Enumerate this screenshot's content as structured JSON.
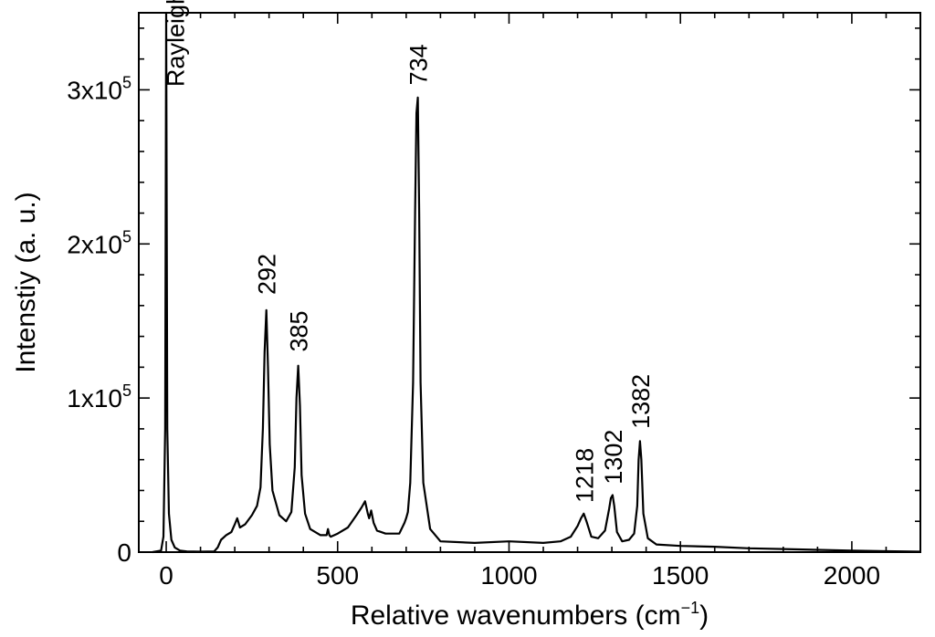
{
  "chart_data": {
    "type": "line",
    "title": "",
    "xlabel_main": "Relative wavenumbers (cm",
    "xlabel_sup": "−1",
    "xlabel_tail": ")",
    "ylabel": "Intenstiy (a. u.)",
    "xlim": [
      -80,
      2200
    ],
    "ylim": [
      0,
      350000
    ],
    "grid": false,
    "x_ticks": [
      {
        "value": 0,
        "label": "0"
      },
      {
        "value": 500,
        "label": "500"
      },
      {
        "value": 1000,
        "label": "1000"
      },
      {
        "value": 1500,
        "label": "1500"
      },
      {
        "value": 2000,
        "label": "2000"
      }
    ],
    "y_ticks": [
      {
        "value": 0,
        "base": "0",
        "exp": ""
      },
      {
        "value": 100000,
        "base": "1x10",
        "exp": "5"
      },
      {
        "value": 200000,
        "base": "2x10",
        "exp": "5"
      },
      {
        "value": 300000,
        "base": "3x10",
        "exp": "5"
      }
    ],
    "series": [
      {
        "color": "#000000",
        "x": [
          -40,
          -15,
          -8,
          -3,
          0,
          3,
          8,
          15,
          25,
          40,
          60,
          100,
          140,
          150,
          160,
          175,
          190,
          200,
          207,
          215,
          230,
          250,
          265,
          275,
          282,
          287,
          292,
          297,
          302,
          310,
          330,
          350,
          365,
          375,
          380,
          385,
          390,
          395,
          405,
          420,
          450,
          468,
          472,
          476,
          480,
          500,
          530,
          555,
          570,
          580,
          588,
          592,
          598,
          605,
          615,
          640,
          680,
          695,
          700,
          705,
          712,
          720,
          726,
          730,
          734,
          738,
          742,
          750,
          770,
          800,
          900,
          1000,
          1100,
          1150,
          1180,
          1200,
          1210,
          1218,
          1226,
          1240,
          1260,
          1280,
          1292,
          1297,
          1302,
          1307,
          1315,
          1330,
          1350,
          1365,
          1374,
          1378,
          1382,
          1386,
          1392,
          1405,
          1430,
          1500,
          1600,
          1700,
          1800,
          1900,
          2000,
          2100,
          2200
        ],
        "y": [
          0,
          1000,
          10000,
          80000,
          350000,
          80000,
          25000,
          8000,
          3000,
          1000,
          500,
          300,
          500,
          3000,
          8000,
          11000,
          13000,
          18000,
          22000,
          16000,
          18000,
          24000,
          30000,
          42000,
          80000,
          130000,
          157000,
          120000,
          70000,
          40000,
          24000,
          20000,
          26000,
          55000,
          100000,
          121000,
          95000,
          50000,
          25000,
          15000,
          11000,
          11000,
          15000,
          11000,
          10000,
          12000,
          16000,
          24000,
          29000,
          33000,
          25000,
          22000,
          27000,
          19000,
          14000,
          12000,
          12000,
          19000,
          22000,
          26000,
          45000,
          110000,
          220000,
          285000,
          295000,
          220000,
          110000,
          45000,
          15000,
          7000,
          6000,
          7000,
          6000,
          7000,
          10000,
          17000,
          22000,
          25000,
          20000,
          10000,
          9000,
          14000,
          28000,
          35000,
          37000,
          30000,
          13000,
          7000,
          8000,
          12000,
          30000,
          60000,
          72000,
          60000,
          25000,
          9000,
          5000,
          4000,
          3500,
          2500,
          2000,
          1500,
          1000,
          600,
          300
        ]
      }
    ],
    "annotations": [
      {
        "text": "Rayleigh line",
        "x": 25,
        "y": 302000
      },
      {
        "text": "292",
        "x": 292,
        "y": 167000
      },
      {
        "text": "385",
        "x": 385,
        "y": 130000
      },
      {
        "text": "734",
        "x": 734,
        "y": 303000
      },
      {
        "text": "1218",
        "x": 1218,
        "y": 32000
      },
      {
        "text": "1302",
        "x": 1302,
        "y": 44000
      },
      {
        "text": "1382",
        "x": 1382,
        "y": 80000
      }
    ]
  }
}
